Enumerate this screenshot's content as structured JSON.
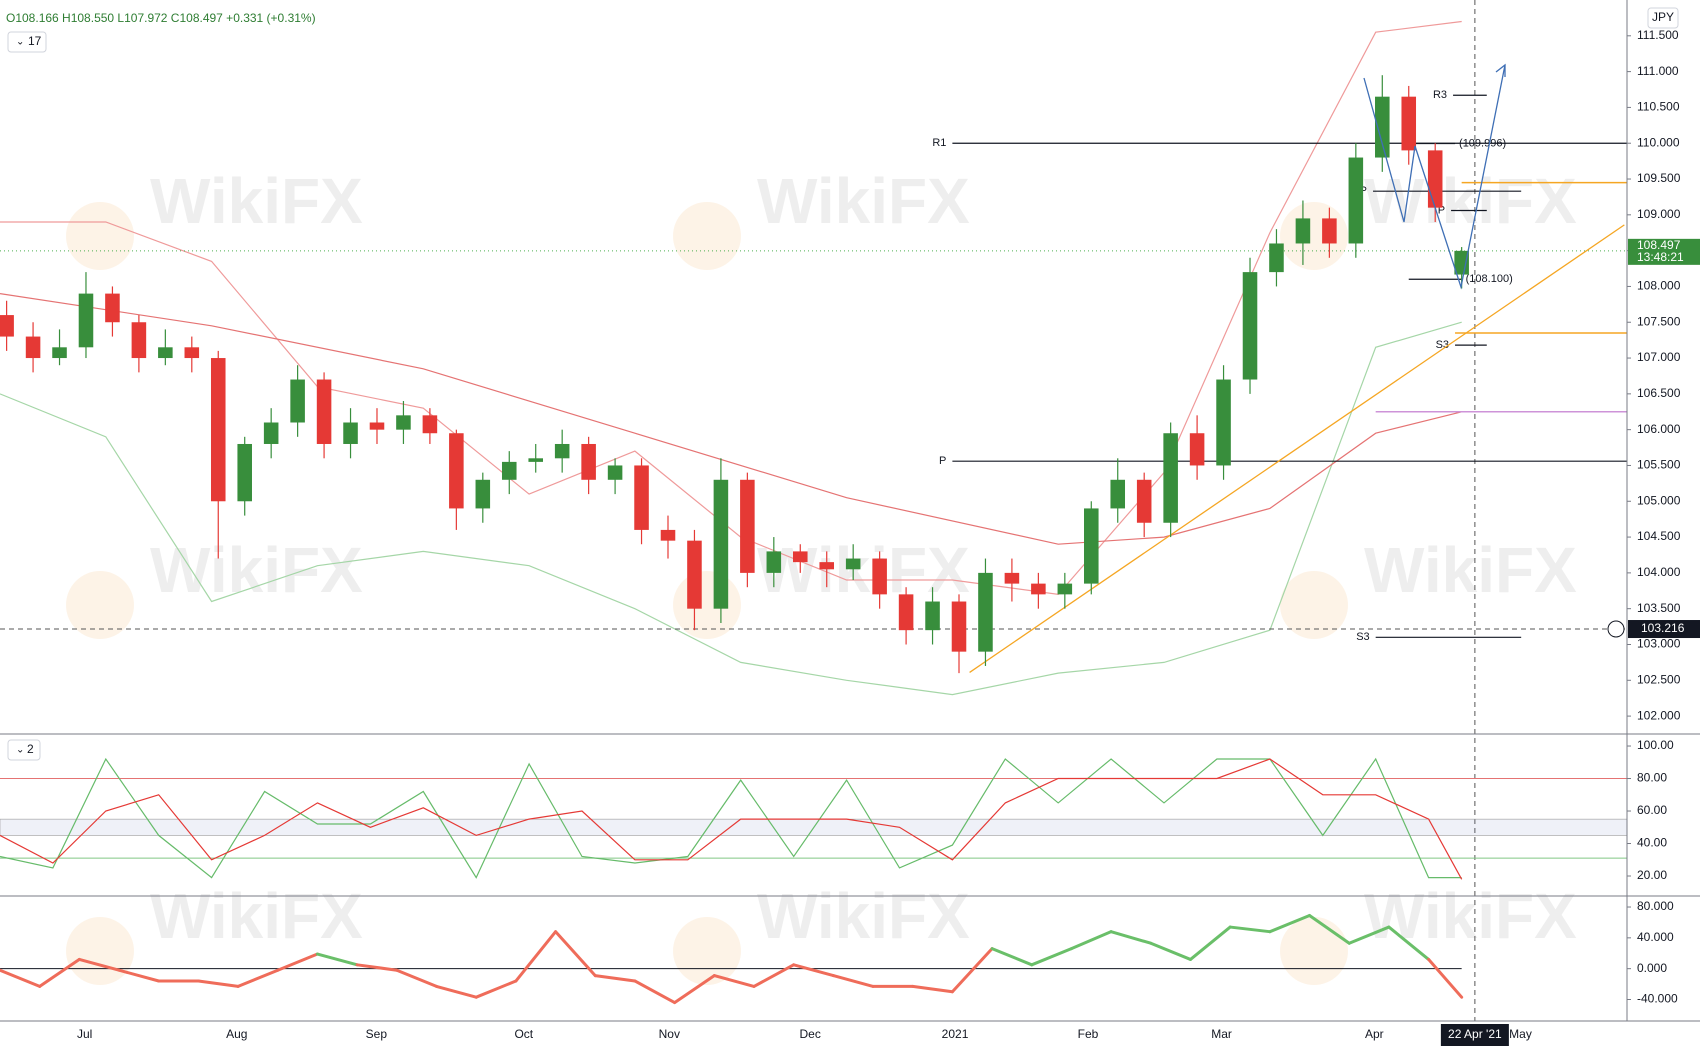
{
  "watermark": "WikiFX",
  "chart_data": [
    {
      "type": "candlestick",
      "symbol_info": "O108.166 H108.550 L107.972 C108.497 +0.331 (+0.31%)",
      "indicator_count": "17",
      "currency": "JPY",
      "countdown": "13:48:21",
      "up_color": "#388e3c",
      "down_color": "#e53935",
      "xlim": [
        0,
        246
      ],
      "xticks": [
        {
          "value": 12.8,
          "label": "Jul"
        },
        {
          "value": 35.8,
          "label": "Aug"
        },
        {
          "value": 56.9,
          "label": "Sep"
        },
        {
          "value": 79.2,
          "label": "Oct"
        },
        {
          "value": 101.2,
          "label": "Nov"
        },
        {
          "value": 122.5,
          "label": "Dec"
        },
        {
          "value": 144.4,
          "label": "2021"
        },
        {
          "value": 164.5,
          "label": "Feb"
        },
        {
          "value": 184.7,
          "label": "Mar"
        },
        {
          "value": 207.8,
          "label": "Apr"
        },
        {
          "value": 229.9,
          "label": "May"
        }
      ],
      "ylim": [
        101.75,
        112.0
      ],
      "yticks": [
        {
          "value": 102,
          "label": "102.000"
        },
        {
          "value": 102.5,
          "label": "102.500"
        },
        {
          "value": 103,
          "label": "103.000"
        },
        {
          "value": 103.5,
          "label": "103.500"
        },
        {
          "value": 104,
          "label": "104.000"
        },
        {
          "value": 104.5,
          "label": "104.500"
        },
        {
          "value": 105,
          "label": "105.000"
        },
        {
          "value": 105.5,
          "label": "105.500"
        },
        {
          "value": 106,
          "label": "106.000"
        },
        {
          "value": 106.5,
          "label": "106.500"
        },
        {
          "value": 107,
          "label": "107.000"
        },
        {
          "value": 107.5,
          "label": "107.500"
        },
        {
          "value": 108,
          "label": "108.000"
        },
        {
          "value": 108.5,
          "label": "108.500"
        },
        {
          "value": 109,
          "label": "109.000"
        },
        {
          "value": 109.5,
          "label": "109.500"
        },
        {
          "value": 110,
          "label": "110.000"
        },
        {
          "value": 110.5,
          "label": "110.500"
        },
        {
          "value": 111,
          "label": "111.000"
        },
        {
          "value": 111.5,
          "label": "111.500"
        }
      ],
      "grid": true,
      "x": [
        1,
        5,
        9,
        13,
        17,
        21,
        25,
        29,
        33,
        37,
        41,
        45,
        49,
        53,
        57,
        61,
        65,
        69,
        73,
        77,
        81,
        85,
        89,
        93,
        97,
        101,
        105,
        109,
        113,
        117,
        121,
        125,
        129,
        133,
        137,
        141,
        145,
        149,
        153,
        157,
        161,
        165,
        169,
        173,
        177,
        181,
        185,
        189,
        193,
        197,
        201,
        205,
        209,
        213,
        217,
        221
      ],
      "open": [
        107.6,
        107.3,
        107.0,
        107.15,
        107.9,
        107.5,
        107.0,
        107.15,
        107.0,
        105.0,
        105.8,
        106.1,
        106.7,
        105.8,
        106.1,
        106.0,
        106.2,
        105.95,
        104.9,
        105.3,
        105.55,
        105.6,
        105.8,
        105.3,
        105.5,
        104.6,
        104.45,
        103.5,
        105.3,
        104.0,
        104.3,
        104.15,
        104.05,
        104.2,
        103.7,
        103.2,
        103.6,
        102.9,
        104.0,
        103.85,
        103.7,
        103.85,
        104.9,
        105.3,
        104.7,
        105.95,
        105.5,
        106.7,
        108.2,
        108.6,
        108.95,
        108.6,
        109.8,
        110.65,
        109.9,
        108.166
      ],
      "high": [
        107.8,
        107.5,
        107.4,
        108.2,
        108.0,
        107.6,
        107.4,
        107.3,
        107.1,
        105.9,
        106.3,
        106.9,
        106.8,
        106.3,
        106.3,
        106.4,
        106.3,
        106.0,
        105.4,
        105.7,
        105.8,
        106.0,
        105.9,
        105.6,
        105.6,
        104.8,
        104.6,
        105.6,
        105.4,
        104.5,
        104.4,
        104.3,
        104.4,
        104.3,
        103.8,
        103.8,
        103.7,
        104.2,
        104.2,
        104.0,
        104.0,
        105.0,
        105.6,
        105.4,
        106.1,
        106.2,
        106.9,
        108.4,
        108.8,
        109.2,
        109.1,
        110.0,
        110.95,
        110.8,
        110.0,
        108.55
      ],
      "low": [
        107.1,
        106.8,
        106.9,
        107.0,
        107.3,
        106.8,
        106.9,
        106.8,
        104.2,
        104.8,
        105.6,
        105.9,
        105.6,
        105.6,
        105.8,
        105.8,
        105.8,
        104.6,
        104.7,
        105.1,
        105.4,
        105.4,
        105.1,
        105.1,
        104.4,
        104.2,
        103.2,
        103.3,
        103.8,
        103.8,
        104.0,
        103.8,
        103.9,
        103.5,
        103.0,
        103.0,
        102.6,
        102.7,
        103.6,
        103.5,
        103.5,
        103.7,
        104.7,
        104.5,
        104.5,
        105.3,
        105.3,
        106.5,
        108.0,
        108.3,
        108.4,
        108.4,
        109.6,
        109.7,
        108.9,
        107.972
      ],
      "close": [
        107.3,
        107.0,
        107.15,
        107.9,
        107.5,
        107.0,
        107.15,
        107.0,
        105.0,
        105.8,
        106.1,
        106.7,
        105.8,
        106.1,
        106.0,
        106.2,
        105.95,
        104.9,
        105.3,
        105.55,
        105.6,
        105.8,
        105.3,
        105.5,
        104.6,
        104.45,
        103.5,
        105.3,
        104.0,
        104.3,
        104.15,
        104.05,
        104.2,
        103.7,
        103.2,
        103.6,
        102.9,
        104.0,
        103.85,
        103.7,
        103.85,
        104.9,
        105.3,
        104.7,
        105.95,
        105.5,
        106.7,
        108.2,
        108.6,
        108.95,
        108.6,
        109.8,
        110.65,
        109.9,
        109.1,
        108.497
      ],
      "overlays": [
        {
          "color": "#ef9a9a",
          "x": [
            0,
            16,
            32,
            48,
            64,
            80,
            96,
            112,
            128,
            144,
            160,
            176,
            192,
            208,
            221
          ],
          "values": [
            108.9,
            108.9,
            108.35,
            106.6,
            106.3,
            105.1,
            105.7,
            104.5,
            103.9,
            103.9,
            103.7,
            105.4,
            108.75,
            111.55,
            111.7
          ]
        },
        {
          "color": "#a5d6a7",
          "x": [
            0,
            16,
            32,
            48,
            64,
            80,
            96,
            112,
            128,
            144,
            160,
            176,
            192,
            208,
            221
          ],
          "values": [
            106.5,
            105.9,
            103.6,
            104.1,
            104.3,
            104.1,
            103.5,
            102.75,
            102.5,
            102.3,
            102.6,
            102.75,
            103.2,
            107.15,
            107.5
          ]
        },
        {
          "color": "#e57373",
          "x": [
            0,
            32,
            64,
            96,
            128,
            160,
            176,
            192,
            208,
            221
          ],
          "values": [
            107.9,
            107.45,
            106.85,
            105.95,
            105.05,
            104.4,
            104.5,
            104.9,
            105.95,
            106.25
          ]
        }
      ],
      "levels": [
        {
          "label": "R1",
          "value": 110.0,
          "start": 144,
          "end": 246,
          "side": "left"
        },
        {
          "label": "P",
          "value": 105.56,
          "start": 144,
          "end": 246,
          "side": "left"
        },
        {
          "label": "R3",
          "value": 110.67,
          "start": 219.7,
          "end": 224.8,
          "side": "left"
        },
        {
          "label": "(109.996)",
          "value": 109.996,
          "start": 213,
          "end": 220,
          "side": "right"
        },
        {
          "label": "P",
          "value": 109.33,
          "start": 207.6,
          "end": 230,
          "side": "left"
        },
        {
          "label": "P",
          "value": 109.06,
          "start": 219.4,
          "end": 224.8,
          "side": "left"
        },
        {
          "label": "(108.100)",
          "value": 108.1,
          "start": 213,
          "end": 221,
          "side": "right"
        },
        {
          "label": "S3",
          "value": 107.18,
          "start": 220,
          "end": 224.8,
          "side": "left"
        },
        {
          "label": "S3",
          "value": 103.1,
          "start": 208,
          "end": 230,
          "side": "left"
        }
      ],
      "lines": [
        {
          "value": 109.45,
          "start": 221,
          "end": 246,
          "color": "#f5a623"
        },
        {
          "value": 107.35,
          "start": 220,
          "end": 246,
          "color": "#f5a623"
        },
        {
          "value": 106.25,
          "start": 208,
          "end": 246,
          "color": "#ce93d8"
        }
      ],
      "trendline": {
        "x": [
          146.6,
          245.6
        ],
        "y": [
          102.61,
          108.86
        ],
        "color": "#f5a623"
      },
      "last_price": 108.497,
      "crosshair_price": 103.216,
      "crosshair_date": {
        "value": 223,
        "label": "22 Apr '21"
      }
    },
    {
      "type": "line",
      "indicator_count": "2",
      "ylim": [
        7.7,
        107.4
      ],
      "yticks": [
        {
          "value": 20,
          "label": "20.00"
        },
        {
          "value": 40,
          "label": "40.00"
        },
        {
          "value": 60,
          "label": "60.00"
        },
        {
          "value": 80,
          "label": "80.00"
        },
        {
          "value": 100,
          "label": "100.00"
        }
      ],
      "hlines": [
        {
          "value": 80,
          "color": "#e57373"
        },
        {
          "value": 31,
          "color": "#81c784"
        }
      ],
      "band": [
        45,
        55
      ],
      "x": [
        0,
        8,
        16,
        24,
        32,
        40,
        48,
        56,
        64,
        72,
        80,
        88,
        96,
        104,
        112,
        120,
        128,
        136,
        144,
        152,
        160,
        168,
        176,
        184,
        192,
        200,
        208,
        216,
        221
      ],
      "series": [
        {
          "color": "#66bb6a",
          "values": [
            32,
            25,
            92,
            45,
            19,
            72,
            52,
            52,
            72,
            19,
            89,
            32,
            28,
            32,
            79,
            32,
            79,
            25,
            39,
            92,
            65,
            92,
            65,
            92,
            92,
            45,
            92,
            19,
            19
          ]
        },
        {
          "color": "#e53935",
          "values": [
            45,
            28,
            60,
            70,
            30,
            45,
            65,
            50,
            62,
            45,
            55,
            60,
            30,
            30,
            55,
            55,
            55,
            50,
            30,
            65,
            80,
            80,
            80,
            80,
            92,
            70,
            70,
            55,
            18
          ]
        }
      ]
    },
    {
      "type": "line",
      "ylim": [
        -67.9,
        94.3
      ],
      "yticks": [
        {
          "value": -40,
          "label": "-40.000"
        },
        {
          "value": 0,
          "label": "0.000"
        },
        {
          "value": 40,
          "label": "40.000"
        },
        {
          "value": 80,
          "label": "80.000"
        }
      ],
      "zero_line": 0,
      "up_color": "#6abf69",
      "down_color": "#ef6c5a",
      "x": [
        0,
        6,
        12,
        18,
        24,
        30,
        36,
        42,
        48,
        54,
        60,
        66,
        72,
        78,
        84,
        90,
        96,
        102,
        108,
        114,
        120,
        126,
        132,
        138,
        144,
        150,
        156,
        162,
        168,
        174,
        180,
        186,
        192,
        198,
        204,
        210,
        216,
        221
      ],
      "values": [
        -2,
        -23,
        12,
        -2,
        -16,
        -16,
        -23,
        -2,
        19,
        5,
        -2,
        -23,
        -37,
        -16,
        48,
        -9,
        -16,
        -44,
        -9,
        -23,
        5,
        -9,
        -23,
        -23,
        -30,
        26,
        5,
        26,
        48,
        33,
        12,
        54,
        48,
        69,
        33,
        54,
        12,
        -37
      ]
    }
  ]
}
